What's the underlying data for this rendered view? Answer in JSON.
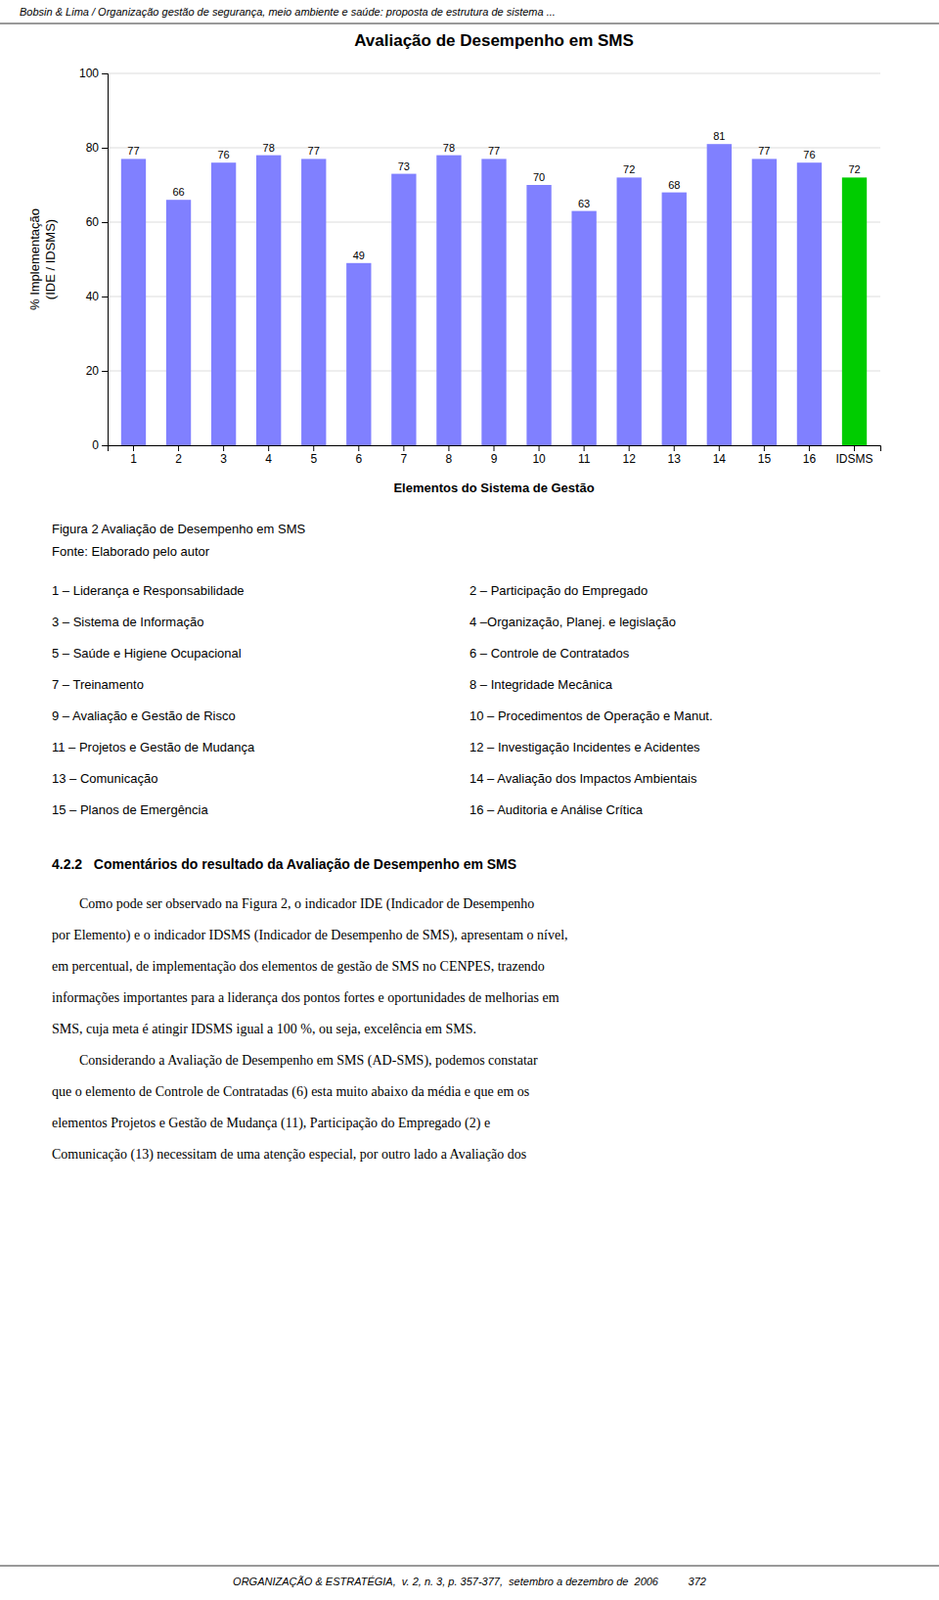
{
  "header_text": "Bobsin & Lima / Organização gestão de segurança, meio ambiente e saúde: proposta de estrutura de sistema ...",
  "chart_data": {
    "type": "bar",
    "title": "Avaliação de Desempenho em SMS",
    "x_label": "Elementos do Sistema de Gestão",
    "y_label": "% Implementação\n(IDE / IDSMS)",
    "categories": [
      "1",
      "2",
      "3",
      "4",
      "5",
      "6",
      "7",
      "8",
      "9",
      "10",
      "11",
      "12",
      "13",
      "14",
      "15",
      "16",
      "IDSMS"
    ],
    "values": [
      77,
      66,
      76,
      78,
      77,
      49,
      73,
      78,
      77,
      70,
      63,
      72,
      68,
      81,
      77,
      76,
      72
    ],
    "colors": [
      "#8080ff",
      "#8080ff",
      "#8080ff",
      "#8080ff",
      "#8080ff",
      "#8080ff",
      "#8080ff",
      "#8080ff",
      "#8080ff",
      "#8080ff",
      "#8080ff",
      "#8080ff",
      "#8080ff",
      "#8080ff",
      "#8080ff",
      "#8080ff",
      "#00cc00"
    ],
    "ylim": [
      0,
      100
    ],
    "yticks": [
      0,
      20,
      40,
      60,
      80,
      100
    ],
    "grid": true,
    "data_labels": true
  },
  "caption_line1": "Figura 2 Avaliação de Desempenho em SMS",
  "caption_line2": "Fonte: Elaborado pelo autor",
  "legend_items": [
    [
      "1 – Liderança e Responsabilidade",
      "2 – Participação do Empregado"
    ],
    [
      "3 – Sistema de Informação",
      "4 –Organização, Planej. e legislação"
    ],
    [
      "5 – Saúde e Higiene Ocupacional",
      "6 – Controle de Contratados"
    ],
    [
      "7 – Treinamento",
      "8 – Integridade Mecânica"
    ],
    [
      "9 – Avaliação e Gestão de Risco",
      "10 – Procedimentos de Operação e Manut."
    ],
    [
      "11 – Projetos e Gestão de Mudança",
      "12 – Investigação Incidentes e Acidentes"
    ],
    [
      "13 – Comunicação",
      "14 – Avaliação dos Impactos Ambientais"
    ],
    [
      "15 – Planos de Emergência",
      "16 – Auditoria e Análise Crítica"
    ]
  ],
  "section_title": "4.2.2   Comentários do resultado da Avaliação de Desempenho em SMS",
  "body_lines": [
    "        Como pode ser observado na Figura 2, o indicador IDE (Indicador de Desempenho",
    "por Elemento) e o indicador IDSMS (Indicador de Desempenho de SMS), apresentam o nível,",
    "em percentual, de implementação dos elementos de gestão de SMS no CENPES, trazendo",
    "informações importantes para a liderança dos pontos fortes e oportunidades de melhorias em",
    "SMS, cuja meta é atingir IDSMS igual a 100 %, ou seja, excelência em SMS.",
    "        Considerando a Avaliação de Desempenho em SMS (AD-SMS), podemos constatar",
    "que o elemento de Controle de Contratadas (6) esta muito abaixo da média e que em os",
    "elementos Projetos e Gestão de Mudança (11), Participação do Empregado (2) e",
    "Comunicação (13) necessitam de uma atenção especial, por outro lado a Avaliação dos"
  ],
  "footer_text": "ORGANIZAÇÃO & ESTRATÉGIA,  v. 2, n. 3, p. 357-377,  setembro a dezembro de  2006          372"
}
